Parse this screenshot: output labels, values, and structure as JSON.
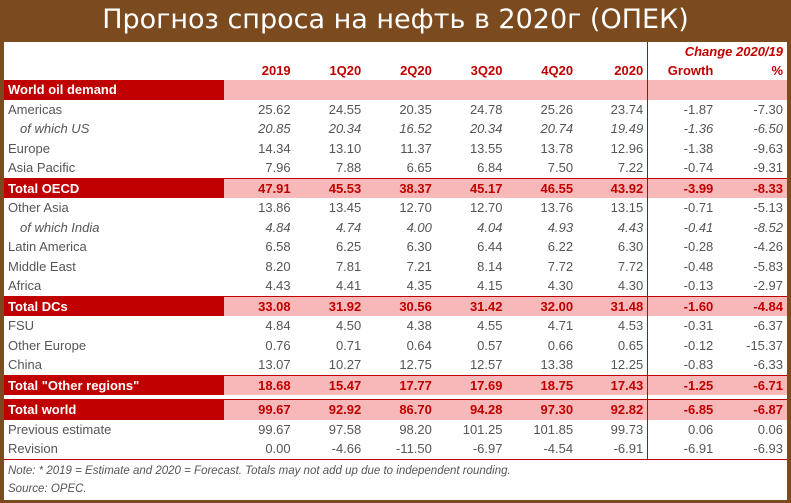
{
  "title": "Прогноз спроса на нефть в 2020г (ОПЕК)",
  "header": {
    "change_label": "Change 2020/19",
    "columns": [
      "2019",
      "1Q20",
      "2Q20",
      "3Q20",
      "4Q20",
      "2020",
      "Growth",
      "%"
    ]
  },
  "section_label": "World oil demand",
  "rows": [
    {
      "name": "Americas",
      "values": [
        "25.62",
        "24.55",
        "20.35",
        "24.78",
        "25.26",
        "23.74",
        "-1.87",
        "-7.30"
      ]
    },
    {
      "name": "of which US",
      "values": [
        "20.85",
        "20.34",
        "16.52",
        "20.34",
        "20.74",
        "19.49",
        "-1.36",
        "-6.50"
      ]
    },
    {
      "name": "Europe",
      "values": [
        "14.34",
        "13.10",
        "11.37",
        "13.55",
        "13.78",
        "12.96",
        "-1.38",
        "-9.63"
      ]
    },
    {
      "name": "Asia Pacific",
      "values": [
        "7.96",
        "7.88",
        "6.65",
        "6.84",
        "7.50",
        "7.22",
        "-0.74",
        "-9.31"
      ]
    },
    {
      "name": "Total OECD",
      "values": [
        "47.91",
        "45.53",
        "38.37",
        "45.17",
        "46.55",
        "43.92",
        "-3.99",
        "-8.33"
      ]
    },
    {
      "name": "Other Asia",
      "values": [
        "13.86",
        "13.45",
        "12.70",
        "12.70",
        "13.76",
        "13.15",
        "-0.71",
        "-5.13"
      ]
    },
    {
      "name": "of which India",
      "values": [
        "4.84",
        "4.74",
        "4.00",
        "4.04",
        "4.93",
        "4.43",
        "-0.41",
        "-8.52"
      ]
    },
    {
      "name": "Latin America",
      "values": [
        "6.58",
        "6.25",
        "6.30",
        "6.44",
        "6.22",
        "6.30",
        "-0.28",
        "-4.26"
      ]
    },
    {
      "name": "Middle East",
      "values": [
        "8.20",
        "7.81",
        "7.21",
        "8.14",
        "7.72",
        "7.72",
        "-0.48",
        "-5.83"
      ]
    },
    {
      "name": "Africa",
      "values": [
        "4.43",
        "4.41",
        "4.35",
        "4.15",
        "4.30",
        "4.30",
        "-0.13",
        "-2.97"
      ]
    },
    {
      "name": "Total DCs",
      "values": [
        "33.08",
        "31.92",
        "30.56",
        "31.42",
        "32.00",
        "31.48",
        "-1.60",
        "-4.84"
      ]
    },
    {
      "name": "FSU",
      "values": [
        "4.84",
        "4.50",
        "4.38",
        "4.55",
        "4.71",
        "4.53",
        "-0.31",
        "-6.37"
      ]
    },
    {
      "name": "Other Europe",
      "values": [
        "0.76",
        "0.71",
        "0.64",
        "0.57",
        "0.66",
        "0.65",
        "-0.12",
        "-15.37"
      ]
    },
    {
      "name": "China",
      "values": [
        "13.07",
        "10.27",
        "12.75",
        "12.57",
        "13.38",
        "12.25",
        "-0.83",
        "-6.33"
      ]
    },
    {
      "name": "Total \"Other regions\"",
      "values": [
        "18.68",
        "15.47",
        "17.77",
        "17.69",
        "18.75",
        "17.43",
        "-1.25",
        "-6.71"
      ]
    },
    {
      "name": "Total world",
      "values": [
        "99.67",
        "92.92",
        "86.70",
        "94.28",
        "97.30",
        "92.82",
        "-6.85",
        "-6.87"
      ]
    },
    {
      "name": "Previous estimate",
      "values": [
        "99.67",
        "97.58",
        "98.20",
        "101.25",
        "101.85",
        "99.73",
        "0.06",
        "0.06"
      ]
    },
    {
      "name": "Revision",
      "values": [
        "0.00",
        "-4.66",
        "-11.50",
        "-6.97",
        "-4.54",
        "-6.91",
        "-6.91",
        "-6.93"
      ]
    }
  ],
  "note": "Note: * 2019 = Estimate and 2020 = Forecast. Totals may not add up due to independent rounding.",
  "source": "Source: OPEC."
}
